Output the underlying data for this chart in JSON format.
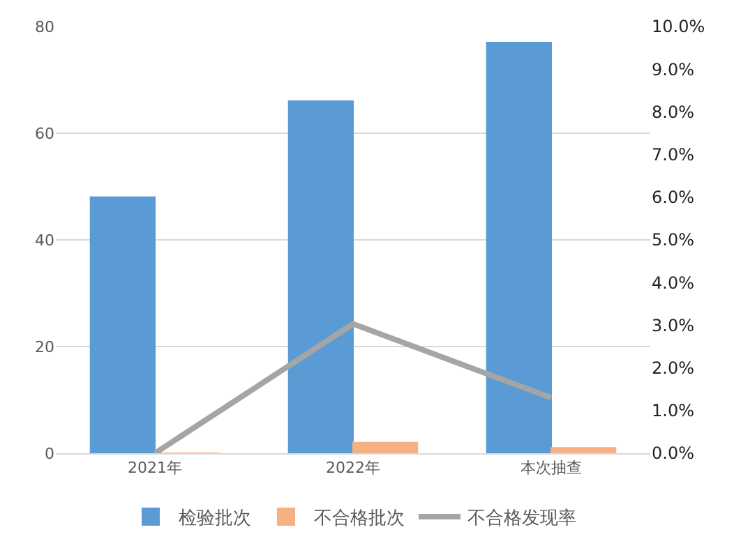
{
  "chart_data": {
    "type": "bar",
    "categories": [
      "2021年",
      "2022年",
      "本次抽查"
    ],
    "series": [
      {
        "name": "检验批次",
        "color": "#5b9bd5",
        "values": [
          48,
          66,
          77
        ]
      },
      {
        "name": "不合格批次",
        "color": "#f4b183",
        "values": [
          0,
          2,
          1
        ]
      },
      {
        "name": "不合格发现率",
        "color": "#a5a5a5",
        "type": "line",
        "axis": "y2",
        "values": [
          0,
          3.03,
          1.3
        ]
      }
    ],
    "ylim": [
      0,
      80
    ],
    "yticks": [
      0,
      20,
      40,
      60,
      80
    ],
    "y2lim": [
      0,
      10
    ],
    "y2ticks": [
      {
        "value": 0,
        "label": "0.0%"
      },
      {
        "value": 1,
        "label": "1.0%"
      },
      {
        "value": 2,
        "label": "2.0%"
      },
      {
        "value": 3,
        "label": "3.0%"
      },
      {
        "value": 4,
        "label": "4.0%"
      },
      {
        "value": 5,
        "label": "5.0%"
      },
      {
        "value": 6,
        "label": "6.0%"
      },
      {
        "value": 7,
        "label": "7.0%"
      },
      {
        "value": 8,
        "label": "8.0%"
      },
      {
        "value": 9,
        "label": "9.0%"
      },
      {
        "value": 10,
        "label": "10.0%"
      }
    ],
    "grid": "y",
    "legend": "bottom",
    "marker": "none",
    "line_style": "solid"
  }
}
